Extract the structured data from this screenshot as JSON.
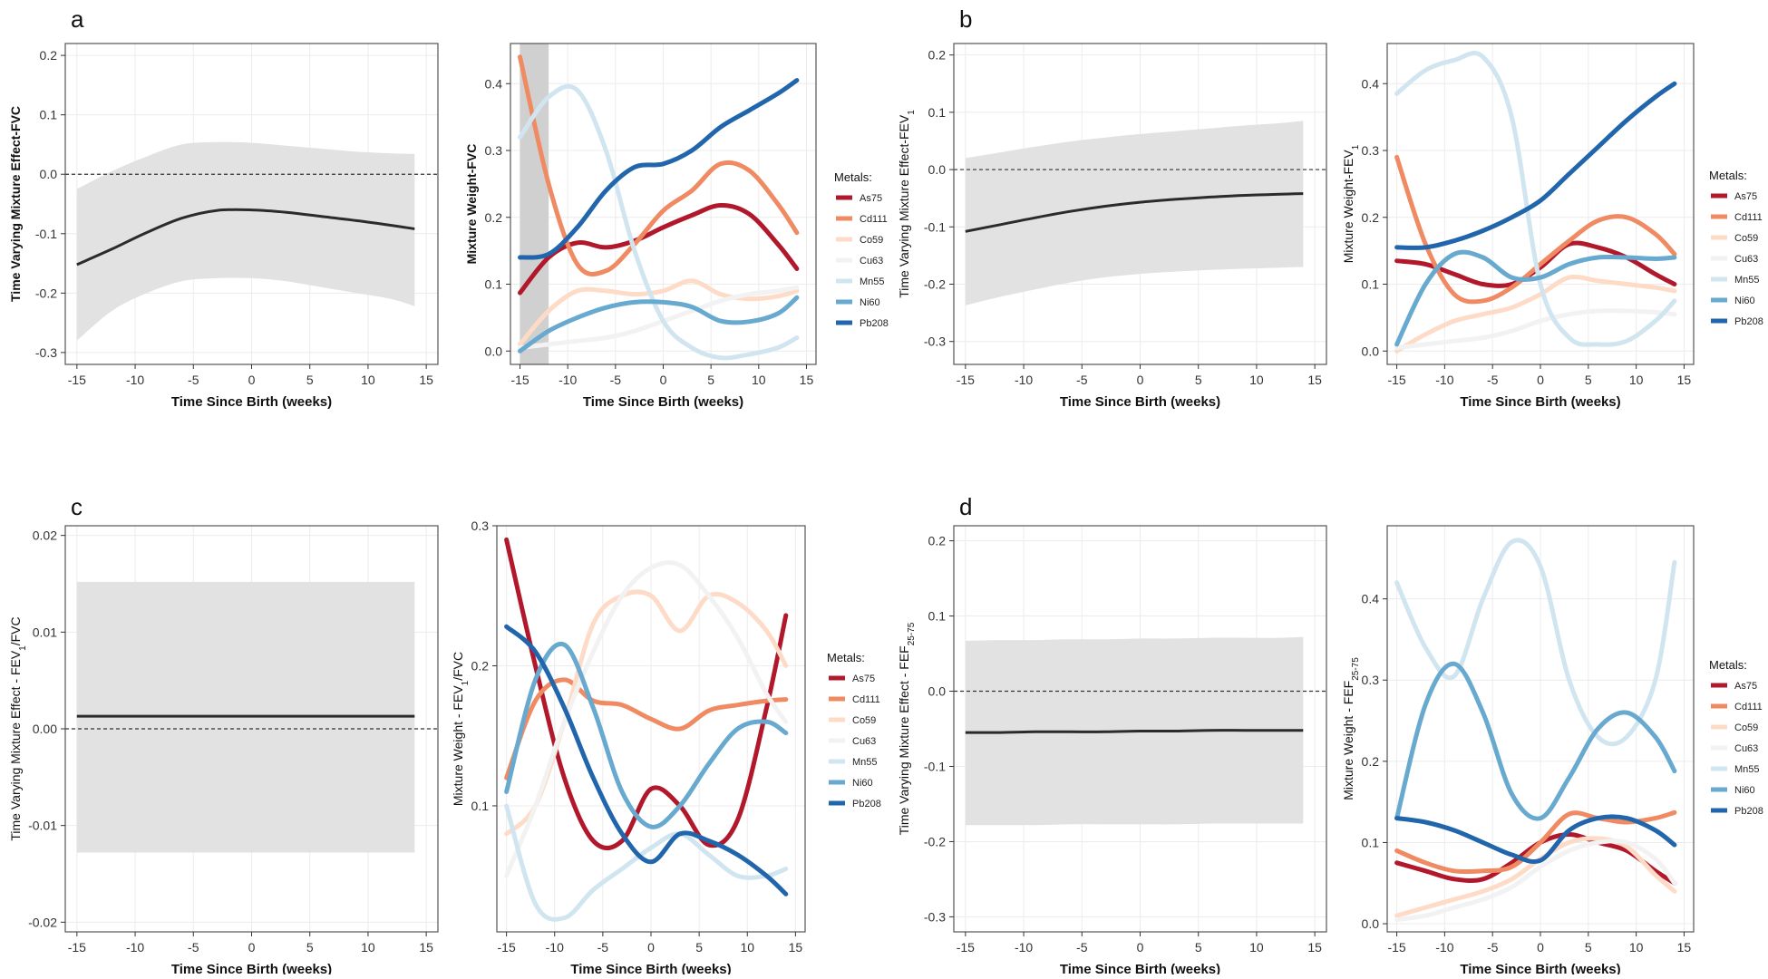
{
  "colors": {
    "As75": "#b2182b",
    "Cd111": "#ef8a62",
    "Co59": "#fddbc7",
    "Cu63": "#f2f2f2",
    "Mn55": "#d1e5f0",
    "Ni60": "#67a9cf",
    "Pb208": "#2166ac",
    "band": "#e2e2e2",
    "effect_line": "#2b2b2b",
    "grid": "#ececec",
    "frame": "#555555"
  },
  "legend": {
    "title": "Metals:",
    "items": [
      "As75",
      "Cd111",
      "Co59",
      "Cu63",
      "Mn55",
      "Ni60",
      "Pb208"
    ]
  },
  "chart_data": [
    {
      "panel": "a",
      "type": "line",
      "role": "effect",
      "xlabel": "Time Since Birth (weeks)",
      "ylabel": [
        {
          "t": "Time Varying Mixture Effect-FVC"
        }
      ],
      "xlim": [
        -16,
        16
      ],
      "ylim": [
        -0.32,
        0.22
      ],
      "xticks": [
        -15,
        -10,
        -5,
        0,
        5,
        10,
        15
      ],
      "yticks": [
        -0.3,
        -0.2,
        -0.1,
        0.0,
        0.1,
        0.2
      ],
      "yticklabels": [
        "-0.3",
        "-0.2",
        "-0.1",
        "0.0",
        "0.1",
        "0.2"
      ],
      "x": [
        -15,
        -12,
        -9,
        -6,
        -3,
        0,
        3,
        6,
        9,
        12,
        14
      ],
      "mean": [
        -0.152,
        -0.126,
        -0.098,
        -0.074,
        -0.061,
        -0.06,
        -0.064,
        -0.071,
        -0.078,
        -0.086,
        -0.092
      ],
      "lower": [
        -0.28,
        -0.23,
        -0.2,
        -0.18,
        -0.175,
        -0.175,
        -0.18,
        -0.19,
        -0.2,
        -0.21,
        -0.222
      ],
      "upper": [
        -0.025,
        0.005,
        0.03,
        0.05,
        0.054,
        0.053,
        0.048,
        0.043,
        0.038,
        0.035,
        0.034
      ],
      "hline": 0
    },
    {
      "panel": "a",
      "type": "line",
      "role": "weights",
      "xlabel": "Time Since Birth (weeks)",
      "ylabel": [
        {
          "t": "Mixture Weight-FVC"
        }
      ],
      "xlim": [
        -16,
        16
      ],
      "ylim": [
        -0.02,
        0.46
      ],
      "xticks": [
        -15,
        -10,
        -5,
        0,
        5,
        10,
        15
      ],
      "yticks": [
        0.0,
        0.1,
        0.2,
        0.3,
        0.4
      ],
      "yticklabels": [
        "0.0",
        "0.1",
        "0.2",
        "0.3",
        "0.4"
      ],
      "highlight": [
        -15,
        -12
      ],
      "x": [
        -15,
        -12,
        -9,
        -6,
        -3,
        0,
        3,
        6,
        9,
        12,
        14
      ],
      "series": [
        {
          "name": "As75",
          "values": [
            0.087,
            0.14,
            0.162,
            0.155,
            0.165,
            0.185,
            0.203,
            0.218,
            0.205,
            0.16,
            0.123
          ]
        },
        {
          "name": "Cd111",
          "values": [
            0.44,
            0.25,
            0.13,
            0.12,
            0.16,
            0.21,
            0.24,
            0.28,
            0.27,
            0.22,
            0.177
          ]
        },
        {
          "name": "Co59",
          "values": [
            0.01,
            0.06,
            0.09,
            0.09,
            0.085,
            0.09,
            0.105,
            0.085,
            0.078,
            0.082,
            0.09
          ]
        },
        {
          "name": "Cu63",
          "values": [
            0.005,
            0.01,
            0.015,
            0.02,
            0.03,
            0.045,
            0.06,
            0.075,
            0.085,
            0.09,
            0.095
          ]
        },
        {
          "name": "Mn55",
          "values": [
            0.32,
            0.38,
            0.39,
            0.3,
            0.15,
            0.045,
            0.005,
            -0.01,
            -0.005,
            0.005,
            0.02
          ]
        },
        {
          "name": "Ni60",
          "values": [
            0.0,
            0.03,
            0.05,
            0.065,
            0.073,
            0.073,
            0.066,
            0.045,
            0.044,
            0.056,
            0.08
          ]
        },
        {
          "name": "Pb208",
          "values": [
            0.14,
            0.145,
            0.185,
            0.24,
            0.275,
            0.28,
            0.3,
            0.335,
            0.36,
            0.385,
            0.405
          ]
        }
      ]
    },
    {
      "panel": "b",
      "type": "line",
      "role": "effect",
      "xlabel": "Time Since Birth (weeks)",
      "ylabel": [
        {
          "t": "Time Varying Mixture Effect-FEV"
        },
        {
          "t": "1",
          "sub": true
        }
      ],
      "xlim": [
        -16,
        16
      ],
      "ylim": [
        -0.34,
        0.22
      ],
      "xticks": [
        -15,
        -10,
        -5,
        0,
        5,
        10,
        15
      ],
      "yticks": [
        -0.3,
        -0.2,
        -0.1,
        0.0,
        0.1,
        0.2
      ],
      "yticklabels": [
        "-0.3",
        "-0.2",
        "-0.1",
        "0.0",
        "0.1",
        "0.2"
      ],
      "x": [
        -15,
        -12,
        -9,
        -6,
        -3,
        0,
        3,
        6,
        9,
        12,
        14
      ],
      "mean": [
        -0.108,
        -0.096,
        -0.084,
        -0.073,
        -0.064,
        -0.057,
        -0.052,
        -0.048,
        -0.045,
        -0.043,
        -0.042
      ],
      "lower": [
        -0.237,
        -0.222,
        -0.209,
        -0.197,
        -0.188,
        -0.182,
        -0.178,
        -0.175,
        -0.173,
        -0.171,
        -0.17
      ],
      "upper": [
        0.02,
        0.03,
        0.04,
        0.049,
        0.056,
        0.062,
        0.067,
        0.072,
        0.077,
        0.081,
        0.085
      ],
      "hline": 0
    },
    {
      "panel": "b",
      "type": "line",
      "role": "weights",
      "xlabel": "Time Since Birth (weeks)",
      "ylabel": [
        {
          "t": "Mixture Weight-FEV"
        },
        {
          "t": "1",
          "sub": true
        }
      ],
      "xlim": [
        -16,
        16
      ],
      "ylim": [
        -0.02,
        0.46
      ],
      "xticks": [
        -15,
        -10,
        -5,
        0,
        5,
        10,
        15
      ],
      "yticks": [
        0.0,
        0.1,
        0.2,
        0.3,
        0.4
      ],
      "yticklabels": [
        "0.0",
        "0.1",
        "0.2",
        "0.3",
        "0.4"
      ],
      "x": [
        -15,
        -12,
        -9,
        -6,
        -3,
        0,
        3,
        6,
        9,
        12,
        14
      ],
      "series": [
        {
          "name": "As75",
          "values": [
            0.135,
            0.13,
            0.115,
            0.1,
            0.1,
            0.125,
            0.16,
            0.155,
            0.14,
            0.115,
            0.1
          ]
        },
        {
          "name": "Cd111",
          "values": [
            0.29,
            0.16,
            0.085,
            0.075,
            0.095,
            0.13,
            0.165,
            0.195,
            0.2,
            0.175,
            0.145
          ]
        },
        {
          "name": "Co59",
          "values": [
            0.0,
            0.025,
            0.045,
            0.055,
            0.065,
            0.085,
            0.11,
            0.105,
            0.1,
            0.095,
            0.09
          ]
        },
        {
          "name": "Cu63",
          "values": [
            0.005,
            0.01,
            0.015,
            0.02,
            0.03,
            0.045,
            0.055,
            0.06,
            0.06,
            0.058,
            0.055
          ]
        },
        {
          "name": "Mn55",
          "values": [
            0.385,
            0.42,
            0.435,
            0.44,
            0.35,
            0.1,
            0.02,
            0.01,
            0.015,
            0.045,
            0.075
          ]
        },
        {
          "name": "Ni60",
          "values": [
            0.01,
            0.1,
            0.145,
            0.14,
            0.11,
            0.11,
            0.13,
            0.14,
            0.14,
            0.138,
            0.14
          ]
        },
        {
          "name": "Pb208",
          "values": [
            0.155,
            0.155,
            0.165,
            0.18,
            0.2,
            0.225,
            0.265,
            0.305,
            0.345,
            0.38,
            0.4
          ]
        }
      ]
    },
    {
      "panel": "c",
      "type": "line",
      "role": "effect",
      "xlabel": "Time Since Birth (weeks)",
      "ylabel": [
        {
          "t": "Time Varying Mixture Effect - FEV"
        },
        {
          "t": "1",
          "sub": true
        },
        {
          "t": "/FVC"
        }
      ],
      "xlim": [
        -16,
        16
      ],
      "ylim": [
        -0.021,
        0.021
      ],
      "xticks": [
        -15,
        -10,
        -5,
        0,
        5,
        10,
        15
      ],
      "yticks": [
        -0.02,
        -0.01,
        0.0,
        0.01,
        0.02
      ],
      "yticklabels": [
        "-0.02",
        "-0.01",
        "0.00",
        "0.01",
        "0.02"
      ],
      "x": [
        -15,
        -12,
        -9,
        -6,
        -3,
        0,
        3,
        6,
        9,
        12,
        14
      ],
      "mean": [
        0.0013,
        0.0013,
        0.0013,
        0.0013,
        0.0013,
        0.0013,
        0.0013,
        0.0013,
        0.0013,
        0.0013,
        0.0013
      ],
      "lower": [
        -0.0128,
        -0.0128,
        -0.0128,
        -0.0128,
        -0.0128,
        -0.0128,
        -0.0128,
        -0.0128,
        -0.0128,
        -0.0128,
        -0.0128
      ],
      "upper": [
        0.0152,
        0.0152,
        0.0152,
        0.0152,
        0.0152,
        0.0152,
        0.0152,
        0.0152,
        0.0152,
        0.0152,
        0.0152
      ],
      "hline": 0
    },
    {
      "panel": "c",
      "type": "line",
      "role": "weights",
      "xlabel": "Time Since Birth (weeks)",
      "ylabel": [
        {
          "t": "Mixture Weight - FEV"
        },
        {
          "t": "1",
          "sub": true
        },
        {
          "t": "/FVC"
        }
      ],
      "xlim": [
        -16,
        16
      ],
      "ylim": [
        0.01,
        0.3
      ],
      "xticks": [
        -15,
        -10,
        -5,
        0,
        5,
        10,
        15
      ],
      "yticks": [
        0.1,
        0.2,
        0.3
      ],
      "yticklabels": [
        "0.1",
        "0.2",
        "0.3"
      ],
      "x": [
        -15,
        -12,
        -9,
        -6,
        -3,
        0,
        3,
        6,
        9,
        12,
        14
      ],
      "series": [
        {
          "name": "As75",
          "values": [
            0.29,
            0.2,
            0.12,
            0.075,
            0.075,
            0.112,
            0.1,
            0.072,
            0.09,
            0.17,
            0.236
          ]
        },
        {
          "name": "Cd111",
          "values": [
            0.12,
            0.175,
            0.19,
            0.175,
            0.172,
            0.162,
            0.155,
            0.168,
            0.172,
            0.175,
            0.176
          ]
        },
        {
          "name": "Co59",
          "values": [
            0.08,
            0.1,
            0.16,
            0.23,
            0.25,
            0.25,
            0.225,
            0.25,
            0.245,
            0.225,
            0.2
          ]
        },
        {
          "name": "Cu63",
          "values": [
            0.05,
            0.1,
            0.16,
            0.21,
            0.25,
            0.27,
            0.272,
            0.25,
            0.22,
            0.18,
            0.16
          ]
        },
        {
          "name": "Mn55",
          "values": [
            0.1,
            0.03,
            0.02,
            0.04,
            0.055,
            0.07,
            0.08,
            0.065,
            0.05,
            0.05,
            0.055
          ]
        },
        {
          "name": "Ni60",
          "values": [
            0.11,
            0.19,
            0.215,
            0.17,
            0.11,
            0.085,
            0.1,
            0.13,
            0.155,
            0.16,
            0.152
          ]
        },
        {
          "name": "Pb208",
          "values": [
            0.228,
            0.21,
            0.17,
            0.12,
            0.08,
            0.06,
            0.08,
            0.075,
            0.065,
            0.05,
            0.037
          ]
        }
      ]
    },
    {
      "panel": "d",
      "type": "line",
      "role": "effect",
      "xlabel": "Time Since Birth (weeks)",
      "ylabel": [
        {
          "t": "Time Varying Mixture Effect - FEF"
        },
        {
          "t": "25-75",
          "sub": true
        }
      ],
      "xlim": [
        -16,
        16
      ],
      "ylim": [
        -0.32,
        0.22
      ],
      "xticks": [
        -15,
        -10,
        -5,
        0,
        5,
        10,
        15
      ],
      "yticks": [
        -0.3,
        -0.2,
        -0.1,
        0.0,
        0.1,
        0.2
      ],
      "yticklabels": [
        "-0.3",
        "-0.2",
        "-0.1",
        "0.0",
        "0.1",
        "0.2"
      ],
      "x": [
        -15,
        -12,
        -9,
        -6,
        -3,
        0,
        3,
        6,
        9,
        12,
        14
      ],
      "mean": [
        -0.055,
        -0.055,
        -0.054,
        -0.054,
        -0.054,
        -0.053,
        -0.053,
        -0.052,
        -0.052,
        -0.052,
        -0.052
      ],
      "lower": [
        -0.178,
        -0.178,
        -0.178,
        -0.177,
        -0.177,
        -0.177,
        -0.177,
        -0.176,
        -0.176,
        -0.176,
        -0.176
      ],
      "upper": [
        0.067,
        0.068,
        0.068,
        0.069,
        0.069,
        0.07,
        0.07,
        0.071,
        0.071,
        0.071,
        0.072
      ],
      "hline": 0
    },
    {
      "panel": "d",
      "type": "line",
      "role": "weights",
      "xlabel": "Time Since Birth (weeks)",
      "ylabel": [
        {
          "t": "Mixture Weight - FEF"
        },
        {
          "t": "25-75",
          "sub": true
        }
      ],
      "xlim": [
        -16,
        16
      ],
      "ylim": [
        -0.01,
        0.49
      ],
      "xticks": [
        -15,
        -10,
        -5,
        0,
        5,
        10,
        15
      ],
      "yticks": [
        0.0,
        0.1,
        0.2,
        0.3,
        0.4
      ],
      "yticklabels": [
        "0.0",
        "0.1",
        "0.2",
        "0.3",
        "0.4"
      ],
      "x": [
        -15,
        -12,
        -9,
        -6,
        -3,
        0,
        3,
        6,
        9,
        12,
        14
      ],
      "series": [
        {
          "name": "As75",
          "values": [
            0.075,
            0.065,
            0.055,
            0.055,
            0.075,
            0.1,
            0.11,
            0.1,
            0.09,
            0.065,
            0.05
          ]
        },
        {
          "name": "Cd111",
          "values": [
            0.09,
            0.075,
            0.065,
            0.065,
            0.07,
            0.1,
            0.135,
            0.13,
            0.125,
            0.13,
            0.137
          ]
        },
        {
          "name": "Co59",
          "values": [
            0.01,
            0.02,
            0.03,
            0.04,
            0.055,
            0.08,
            0.1,
            0.105,
            0.095,
            0.06,
            0.04
          ]
        },
        {
          "name": "Cu63",
          "values": [
            0.005,
            0.01,
            0.02,
            0.03,
            0.045,
            0.07,
            0.09,
            0.1,
            0.1,
            0.08,
            0.05
          ]
        },
        {
          "name": "Mn55",
          "values": [
            0.42,
            0.34,
            0.305,
            0.4,
            0.47,
            0.44,
            0.3,
            0.23,
            0.23,
            0.3,
            0.445
          ]
        },
        {
          "name": "Ni60",
          "values": [
            0.13,
            0.27,
            0.32,
            0.26,
            0.16,
            0.13,
            0.18,
            0.24,
            0.26,
            0.23,
            0.188
          ]
        },
        {
          "name": "Pb208",
          "values": [
            0.13,
            0.125,
            0.115,
            0.1,
            0.085,
            0.078,
            0.115,
            0.13,
            0.13,
            0.115,
            0.097
          ]
        }
      ]
    }
  ]
}
